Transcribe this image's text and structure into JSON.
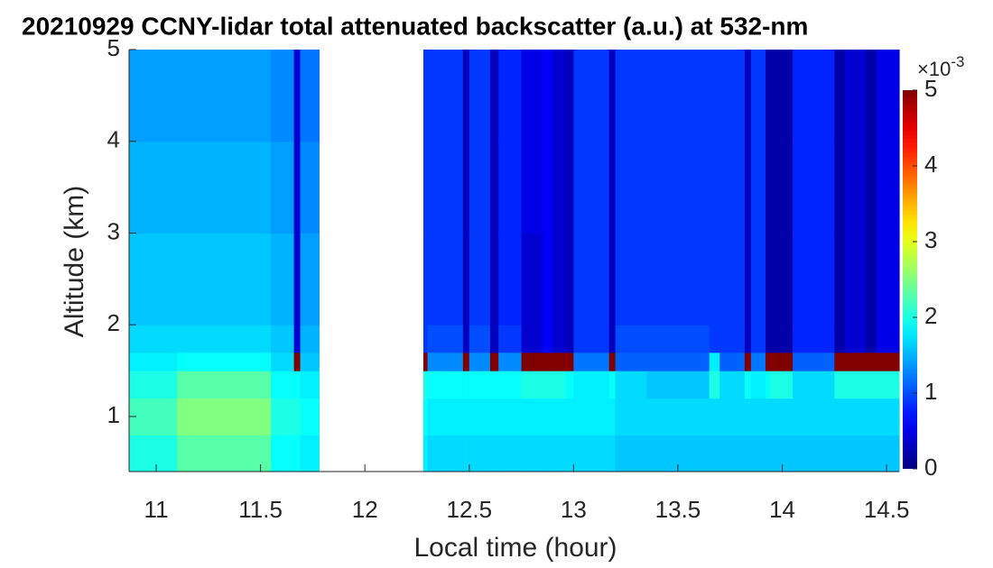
{
  "chart_data": {
    "type": "heatmap",
    "title": "20210929 CCNY-lidar total attenuated backscatter (a.u.) at 532-nm",
    "x_label": "Local time (hour)",
    "y_label": "Altitude (km)",
    "xlim": [
      10.87,
      14.56
    ],
    "ylim": [
      0.4,
      5
    ],
    "xticks": [
      11,
      11.5,
      12,
      12.5,
      13,
      13.5,
      14,
      14.5
    ],
    "yticks": [
      1,
      2,
      3,
      4,
      5
    ],
    "x_edges": [
      10.87,
      11.1,
      11.55,
      11.66,
      11.69,
      11.78,
      12.28,
      12.3,
      12.47,
      12.5,
      12.6,
      12.64,
      12.75,
      12.85,
      12.9,
      12.96,
      13.0,
      13.17,
      13.2,
      13.35,
      13.65,
      13.7,
      13.82,
      13.85,
      13.92,
      13.94,
      14.05,
      14.25,
      14.3,
      14.4,
      14.45,
      14.56
    ],
    "y_edges": [
      0.4,
      0.8,
      1.2,
      1.5,
      1.7,
      2.0,
      3.0,
      4.0,
      5.0
    ],
    "z": [
      [
        2.0,
        2.2,
        2.0,
        1.8,
        1.7,
        1.6,
        1.5,
        1.4
      ],
      [
        2.3,
        2.5,
        2.3,
        1.9,
        1.7,
        1.6,
        1.5,
        1.4
      ],
      [
        1.9,
        2.0,
        1.9,
        1.7,
        1.6,
        1.5,
        1.4,
        1.3
      ],
      [
        1.9,
        2.0,
        1.9,
        5.0,
        0.4,
        0.4,
        0.4,
        0.4
      ],
      [
        1.8,
        1.9,
        1.8,
        1.6,
        1.5,
        1.4,
        1.3,
        1.2
      ],
      [
        null,
        null,
        null,
        null,
        null,
        null,
        null,
        null
      ],
      [
        1.8,
        1.9,
        2.0,
        5.0,
        0.9,
        0.9,
        0.9,
        0.9
      ],
      [
        1.7,
        1.8,
        1.9,
        1.3,
        1.0,
        0.9,
        0.9,
        0.9
      ],
      [
        1.7,
        1.8,
        1.9,
        5.0,
        0.3,
        0.3,
        0.3,
        0.3
      ],
      [
        1.7,
        1.8,
        1.9,
        1.3,
        1.0,
        0.9,
        0.9,
        0.9
      ],
      [
        1.7,
        1.8,
        1.9,
        5.0,
        0.3,
        0.3,
        0.3,
        0.3
      ],
      [
        1.7,
        1.8,
        1.9,
        1.3,
        0.9,
        0.8,
        0.8,
        0.8
      ],
      [
        1.7,
        1.8,
        2.0,
        5.0,
        0.4,
        0.4,
        0.5,
        0.5
      ],
      [
        1.7,
        1.8,
        2.0,
        5.0,
        0.6,
        0.6,
        0.6,
        0.6
      ],
      [
        1.7,
        1.8,
        2.0,
        5.0,
        0.4,
        0.4,
        0.4,
        0.4
      ],
      [
        1.7,
        1.8,
        1.9,
        5.0,
        0.3,
        0.3,
        0.3,
        0.3
      ],
      [
        1.7,
        1.8,
        1.8,
        1.2,
        0.9,
        0.9,
        0.9,
        0.9
      ],
      [
        1.7,
        1.8,
        1.9,
        5.0,
        0.3,
        0.3,
        0.3,
        0.3
      ],
      [
        1.6,
        1.7,
        1.7,
        1.1,
        1.0,
        0.9,
        0.9,
        0.9
      ],
      [
        1.6,
        1.7,
        1.6,
        1.1,
        1.0,
        0.9,
        0.9,
        0.9
      ],
      [
        1.6,
        1.7,
        2.0,
        1.8,
        0.9,
        0.9,
        0.9,
        0.9
      ],
      [
        1.6,
        1.7,
        1.7,
        1.1,
        0.9,
        0.9,
        0.9,
        0.9
      ],
      [
        1.6,
        1.7,
        1.9,
        5.0,
        0.3,
        0.3,
        0.3,
        0.3
      ],
      [
        1.6,
        1.7,
        1.8,
        1.2,
        0.9,
        0.9,
        0.9,
        0.9
      ],
      [
        1.6,
        1.7,
        1.9,
        5.0,
        0.2,
        0.2,
        0.2,
        0.2
      ],
      [
        1.6,
        1.7,
        2.0,
        5.0,
        0.2,
        0.2,
        0.2,
        0.2
      ],
      [
        1.6,
        1.7,
        1.7,
        1.1,
        0.8,
        0.8,
        0.8,
        0.8
      ],
      [
        1.6,
        1.7,
        2.0,
        5.0,
        0.2,
        0.2,
        0.2,
        0.2
      ],
      [
        1.6,
        1.7,
        2.0,
        5.0,
        0.4,
        0.4,
        0.4,
        0.4
      ],
      [
        1.6,
        1.7,
        2.0,
        5.0,
        0.2,
        0.2,
        0.2,
        0.2
      ],
      [
        1.6,
        1.7,
        2.0,
        5.0,
        0.5,
        0.5,
        0.5,
        0.5
      ]
    ],
    "colormap": "jet",
    "clim": [
      0,
      5
    ],
    "cticks": [
      0,
      1,
      2,
      3,
      4,
      5
    ],
    "colorbar_multiplier": {
      "base": "×10",
      "exponent": "-3"
    }
  }
}
